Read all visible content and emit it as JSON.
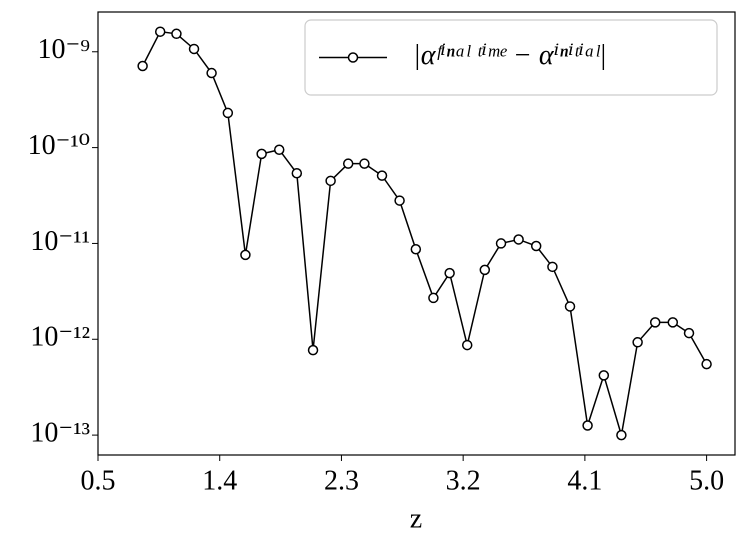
{
  "chart_data": {
    "type": "line",
    "log_y": true,
    "xlabel": "z",
    "x": [
      0.83,
      0.96,
      1.08,
      1.21,
      1.34,
      1.46,
      1.59,
      1.71,
      1.84,
      1.97,
      2.09,
      2.22,
      2.35,
      2.47,
      2.6,
      2.73,
      2.85,
      2.98,
      3.1,
      3.23,
      3.36,
      3.48,
      3.61,
      3.74,
      3.86,
      3.99,
      4.12,
      4.24,
      4.37,
      4.49,
      4.62,
      4.75,
      4.87,
      5.0
    ],
    "series": [
      {
        "name": "|αᶠⁱⁿᵃˡ ᵗⁱᵐᵉ − αⁱⁿⁱᵗⁱᵃˡ|",
        "color": "#000000",
        "marker": "open-circle",
        "values": [
          7.1e-10,
          1.62e-09,
          1.54e-09,
          1.07e-09,
          6e-10,
          2.3e-10,
          7.6e-12,
          8.6e-11,
          9.5e-11,
          5.4e-11,
          7.7e-13,
          4.5e-11,
          6.8e-11,
          6.8e-11,
          5.1e-11,
          2.8e-11,
          8.7e-12,
          2.7e-12,
          4.9e-12,
          8.7e-13,
          5.3e-12,
          1e-11,
          1.1e-11,
          9.4e-12,
          5.7e-12,
          2.2e-12,
          1.26e-13,
          4.2e-13,
          1e-13,
          9.3e-13,
          1.5e-12,
          1.5e-12,
          1.16e-12,
          5.5e-13
        ]
      }
    ],
    "xlim": [
      0.5,
      5.21
    ],
    "xticks": [
      0.5,
      1.4,
      2.3,
      3.2,
      4.1,
      {
        "value": 5,
        "label": "5.0"
      }
    ],
    "ylim": [
      6.2e-14,
      2.6e-09
    ],
    "yticks": [
      {
        "value": 1e-13,
        "label": "10⁻¹³"
      },
      {
        "value": 1e-12,
        "label": "10⁻¹²"
      },
      {
        "value": 1e-11,
        "label": "10⁻¹¹"
      },
      {
        "value": 1e-10,
        "label": "10⁻¹⁰"
      },
      {
        "value": 1e-09,
        "label": "10⁻⁹"
      }
    ],
    "legend": "upper right",
    "grid": false
  }
}
